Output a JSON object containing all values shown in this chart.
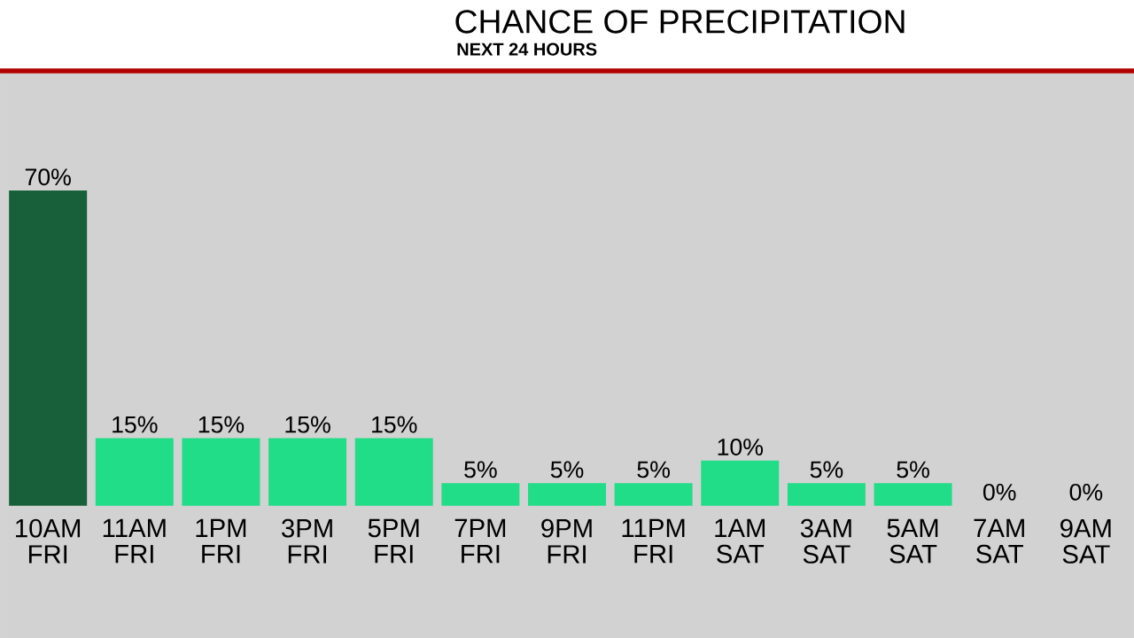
{
  "chart_data": {
    "type": "bar",
    "title": "CHANCE OF PRECIPITATION",
    "subtitle": "NEXT 24 HOURS",
    "categories": [
      "10AM FRI",
      "11AM FRI",
      "1PM FRI",
      "3PM FRI",
      "5PM FRI",
      "7PM FRI",
      "9PM FRI",
      "11PM FRI",
      "1AM SAT",
      "3AM SAT",
      "5AM SAT",
      "7AM SAT",
      "9AM SAT"
    ],
    "values": [
      70,
      15,
      15,
      15,
      15,
      5,
      5,
      5,
      10,
      5,
      5,
      0,
      0
    ],
    "value_labels": [
      "70%",
      "15%",
      "15%",
      "15%",
      "15%",
      "5%",
      "5%",
      "5%",
      "10%",
      "5%",
      "5%",
      "0%",
      "0%"
    ],
    "colors": [
      "#17603a",
      "#22dd88",
      "#22dd88",
      "#22dd88",
      "#22dd88",
      "#22dd88",
      "#22dd88",
      "#22dd88",
      "#22dd88",
      "#22dd88",
      "#22dd88",
      "#22dd88",
      "#22dd88"
    ]
  }
}
